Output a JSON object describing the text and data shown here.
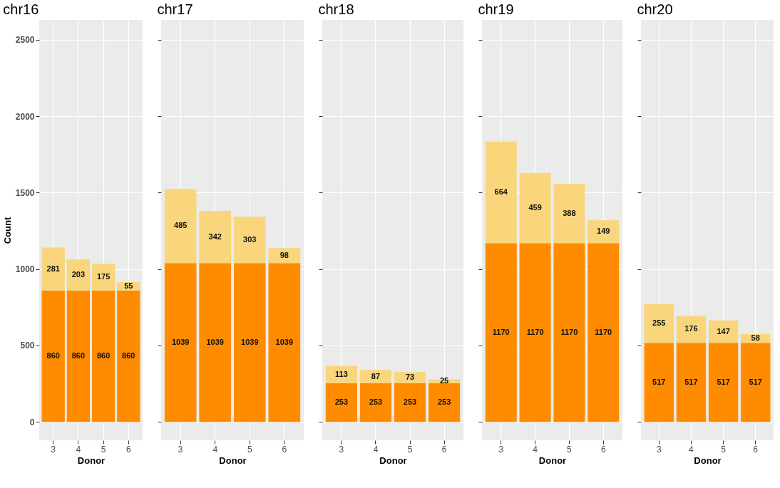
{
  "chart_data": [
    {
      "type": "bar",
      "title": "chr16",
      "xlabel": "Donor",
      "ylabel": "Count",
      "categories": [
        "3",
        "4",
        "5",
        "6"
      ],
      "stacked": true,
      "data_labels": true,
      "grid": true,
      "ylim": [
        -120,
        2630
      ],
      "yticks": [
        0,
        500,
        1000,
        1500,
        2000,
        2500
      ],
      "series": [
        {
          "color": "#ff8c00",
          "values": [
            860,
            860,
            860,
            860
          ]
        },
        {
          "color": "#f9d67c",
          "values": [
            281,
            203,
            175,
            55
          ]
        }
      ]
    },
    {
      "type": "bar",
      "title": "chr17",
      "xlabel": "Donor",
      "categories": [
        "3",
        "4",
        "5",
        "6"
      ],
      "stacked": true,
      "data_labels": true,
      "grid": true,
      "ylim": [
        -120,
        2630
      ],
      "yticks": [
        0,
        500,
        1000,
        1500,
        2000,
        2500
      ],
      "tick_labels": "x",
      "series": [
        {
          "color": "#ff8c00",
          "values": [
            1039,
            1039,
            1039,
            1039
          ]
        },
        {
          "color": "#f9d67c",
          "values": [
            485,
            342,
            303,
            98
          ]
        }
      ]
    },
    {
      "type": "bar",
      "title": "chr18",
      "xlabel": "Donor",
      "categories": [
        "3",
        "4",
        "5",
        "6"
      ],
      "stacked": true,
      "data_labels": true,
      "grid": true,
      "ylim": [
        -120,
        2630
      ],
      "yticks": [
        0,
        500,
        1000,
        1500,
        2000,
        2500
      ],
      "tick_labels": "x",
      "series": [
        {
          "color": "#ff8c00",
          "values": [
            253,
            253,
            253,
            253
          ]
        },
        {
          "color": "#f9d67c",
          "values": [
            113,
            87,
            73,
            25
          ]
        }
      ]
    },
    {
      "type": "bar",
      "title": "chr19",
      "xlabel": "Donor",
      "categories": [
        "3",
        "4",
        "5",
        "6"
      ],
      "stacked": true,
      "data_labels": true,
      "grid": true,
      "ylim": [
        -120,
        2630
      ],
      "yticks": [
        0,
        500,
        1000,
        1500,
        2000,
        2500
      ],
      "tick_labels": "x",
      "series": [
        {
          "color": "#ff8c00",
          "values": [
            1170,
            1170,
            1170,
            1170
          ]
        },
        {
          "color": "#f9d67c",
          "values": [
            664,
            459,
            388,
            149
          ]
        }
      ]
    },
    {
      "type": "bar",
      "title": "chr20",
      "xlabel": "Donor",
      "categories": [
        "3",
        "4",
        "5",
        "6"
      ],
      "stacked": true,
      "data_labels": true,
      "grid": true,
      "ylim": [
        -120,
        2630
      ],
      "yticks": [
        0,
        500,
        1000,
        1500,
        2000,
        2500
      ],
      "tick_labels": "x",
      "series": [
        {
          "color": "#ff8c00",
          "values": [
            517,
            517,
            517,
            517
          ]
        },
        {
          "color": "#f9d67c",
          "values": [
            255,
            176,
            147,
            58
          ]
        }
      ]
    }
  ]
}
